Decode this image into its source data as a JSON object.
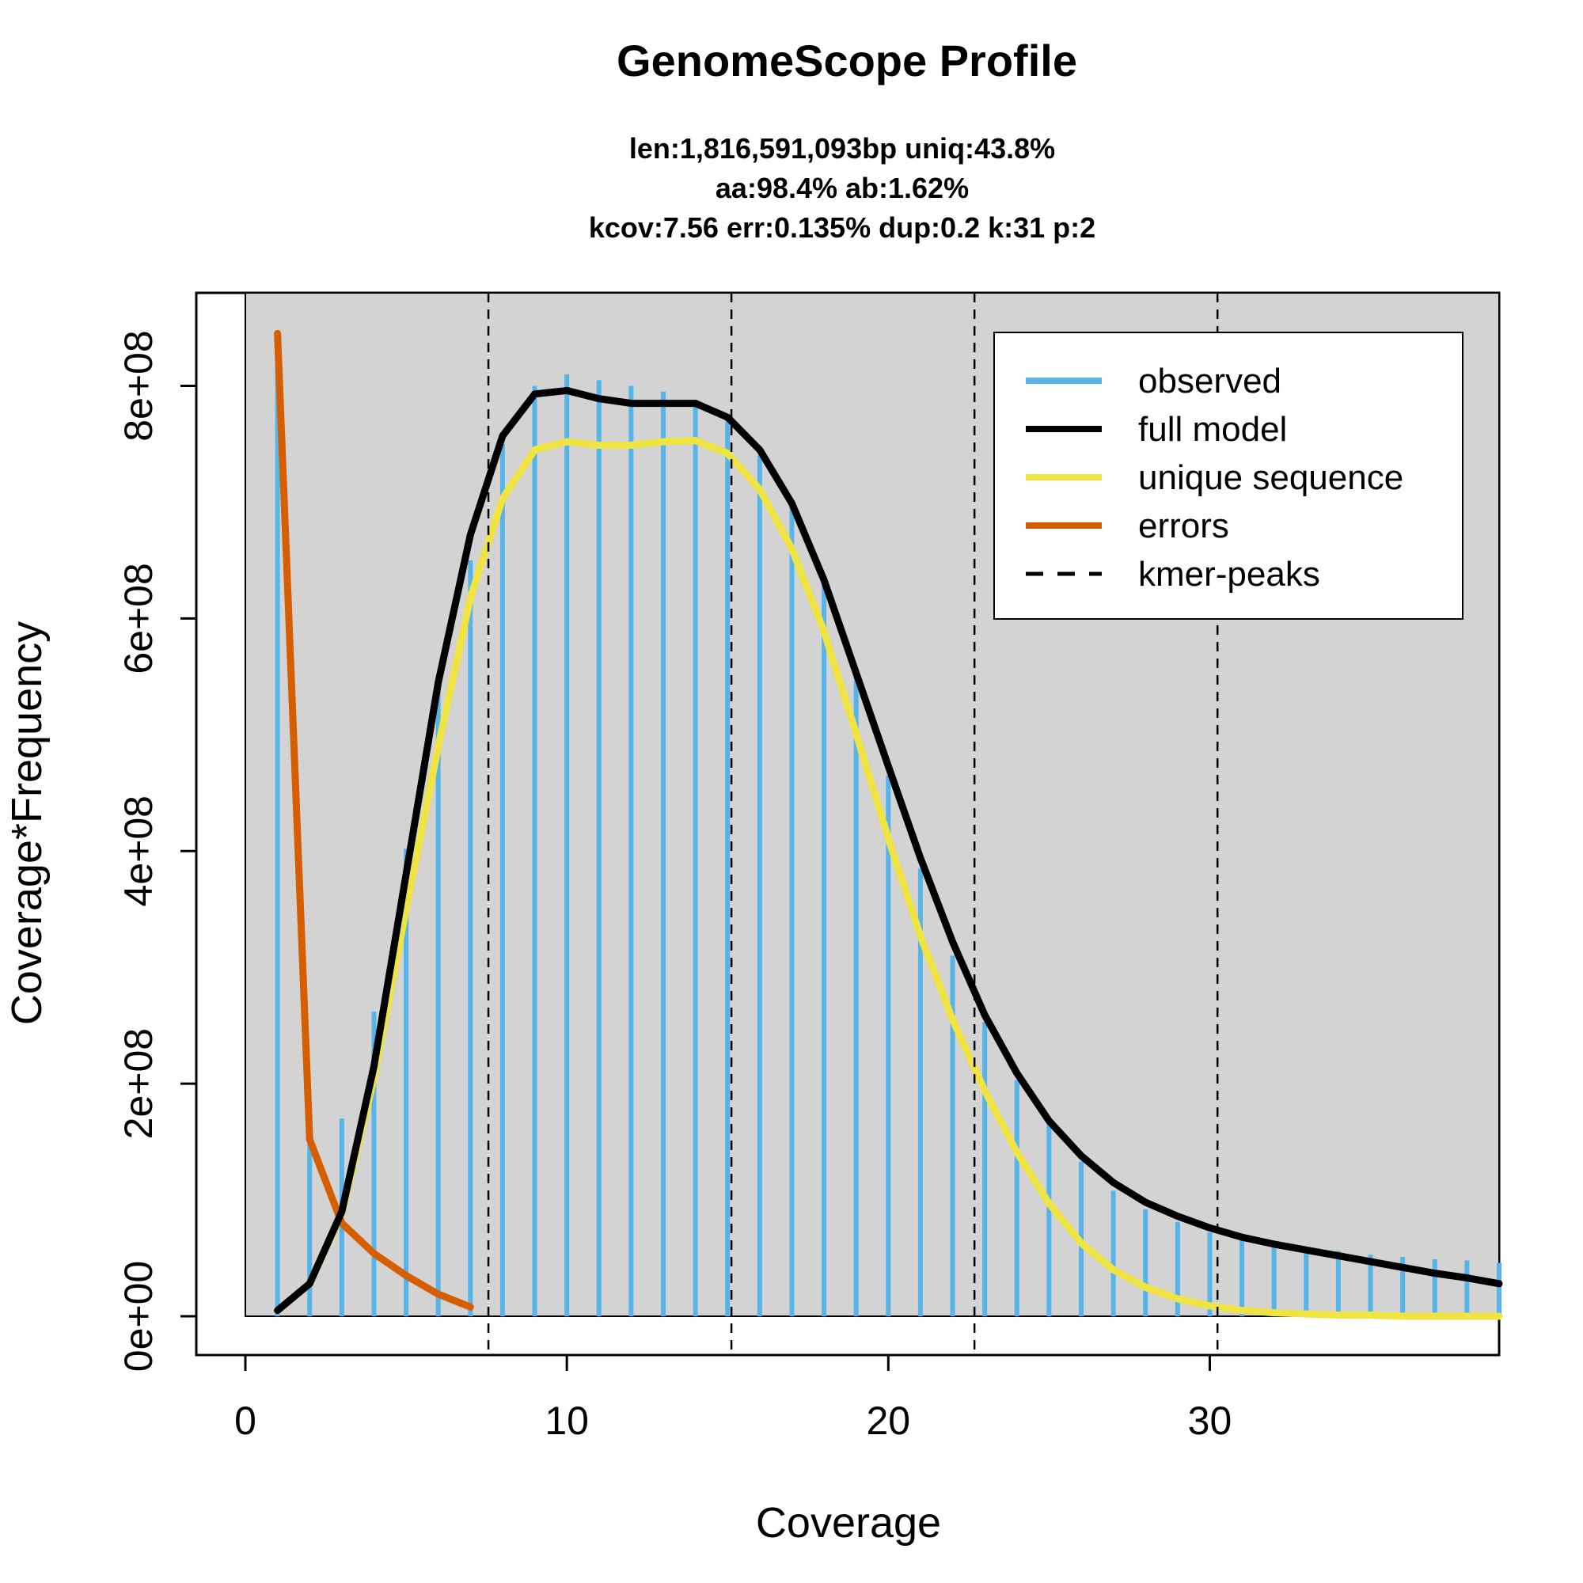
{
  "chart_data": {
    "type": "line",
    "title": "GenomeScope Profile",
    "subtitle_lines": [
      "len:1,816,591,093bp uniq:43.8%",
      "aa:98.4% ab:1.62%",
      "kcov:7.56 err:0.135%  dup:0.2  k:31 p:2"
    ],
    "xlabel": "Coverage",
    "ylabel": "Coverage*Frequency",
    "xlim": [
      0,
      39
    ],
    "ylim": [
      0,
      880000000
    ],
    "x_ticks": [
      0,
      10,
      20,
      30
    ],
    "x_tick_labels": [
      "0",
      "10",
      "20",
      "30"
    ],
    "y_ticks": [
      0,
      200000000,
      400000000,
      600000000,
      800000000
    ],
    "y_tick_labels": [
      "0e+00",
      "2e+08",
      "4e+08",
      "6e+08",
      "8e+08"
    ],
    "legend_position": "top-right",
    "legend": [
      {
        "label": "observed",
        "color": "#56B4E9",
        "style": "solid"
      },
      {
        "label": "full model",
        "color": "#000000",
        "style": "solid"
      },
      {
        "label": "unique sequence",
        "color": "#F0E442",
        "style": "solid"
      },
      {
        "label": "errors",
        "color": "#D55E00",
        "style": "solid"
      },
      {
        "label": "kmer-peaks",
        "color": "#000000",
        "style": "dashed"
      }
    ],
    "observed": {
      "x": [
        1,
        2,
        3,
        4,
        5,
        6,
        7,
        8,
        9,
        10,
        11,
        12,
        13,
        14,
        15,
        16,
        17,
        18,
        19,
        20,
        21,
        22,
        23,
        24,
        25,
        26,
        27,
        28,
        29,
        30,
        31,
        32,
        33,
        34,
        35,
        36,
        37,
        38,
        39
      ],
      "y": [
        845000000,
        150000000,
        170000000,
        262000000,
        402000000,
        550000000,
        650000000,
        750000000,
        800000000,
        810000000,
        805000000,
        800000000,
        795000000,
        788000000,
        775000000,
        740000000,
        700000000,
        630000000,
        550000000,
        465000000,
        385000000,
        310000000,
        253000000,
        203000000,
        166000000,
        133000000,
        108000000,
        92000000,
        81000000,
        72000000,
        66000000,
        61000000,
        58000000,
        56000000,
        53000000,
        51000000,
        49000000,
        48000000,
        46000000
      ]
    },
    "full_model": {
      "x": [
        1,
        2,
        3,
        4,
        5,
        6,
        7,
        8,
        9,
        10,
        11,
        12,
        13,
        14,
        15,
        16,
        17,
        18,
        19,
        20,
        21,
        22,
        23,
        24,
        25,
        26,
        27,
        28,
        29,
        30,
        31,
        32,
        33,
        34,
        35,
        36,
        37,
        38,
        39
      ],
      "y": [
        5000000,
        28000000,
        90000000,
        215000000,
        380000000,
        545000000,
        672000000,
        757000000,
        793000000,
        796000000,
        789000000,
        785000000,
        785000000,
        785000000,
        773000000,
        745000000,
        699000000,
        633000000,
        553000000,
        473000000,
        394000000,
        322000000,
        259000000,
        209000000,
        168000000,
        138000000,
        115000000,
        98000000,
        86000000,
        76000000,
        68000000,
        62000000,
        57000000,
        52000000,
        47000000,
        42000000,
        37000000,
        33000000,
        28000000
      ]
    },
    "unique_sequence": {
      "x": [
        1,
        2,
        3,
        4,
        5,
        6,
        7,
        8,
        9,
        10,
        11,
        12,
        13,
        14,
        15,
        16,
        17,
        18,
        19,
        20,
        21,
        22,
        23,
        24,
        25,
        26,
        27,
        28,
        29,
        30,
        31,
        32,
        33,
        34,
        35,
        36,
        37,
        38,
        39
      ],
      "y": [
        5000000,
        28000000,
        88000000,
        205000000,
        350000000,
        490000000,
        618000000,
        703000000,
        745000000,
        752000000,
        749000000,
        749000000,
        752000000,
        753000000,
        742000000,
        711000000,
        660000000,
        589000000,
        501000000,
        411000000,
        327000000,
        255000000,
        194000000,
        141000000,
        97000000,
        63000000,
        40000000,
        25000000,
        15000000,
        9000000,
        5000000,
        3000000,
        2000000,
        1000000,
        1000000,
        0,
        0,
        0,
        0
      ]
    },
    "errors": {
      "x": [
        1,
        2,
        3,
        4,
        5,
        6,
        7
      ],
      "y": [
        845000000,
        152000000,
        80000000,
        54000000,
        35000000,
        19000000,
        8000000
      ]
    },
    "kmer_peaks": [
      7.56,
      15.12,
      22.68,
      30.24
    ]
  }
}
